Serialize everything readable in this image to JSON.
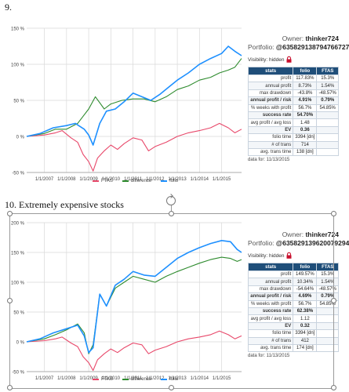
{
  "headings": [
    "9.",
    "10. Extremely expensive stocks"
  ],
  "panels": [
    {
      "owner_label": "Owner:",
      "owner": "thinker724",
      "portfolio_label": "Portfolio:",
      "portfolio": "@635829138794766727",
      "visibility": "Visibility: hidden",
      "table_headers": [
        "stats",
        "folio",
        "FTAS"
      ],
      "rows": [
        {
          "label": "profit",
          "folio": "117.83%",
          "ftas": "15.3%",
          "bold": false
        },
        {
          "label": "annual profit",
          "folio": "8.73%",
          "ftas": "1.54%",
          "bold": false
        },
        {
          "label": "max drawdown",
          "folio": "-43.8%",
          "ftas": "-48.57%",
          "bold": false
        },
        {
          "label": "annual profit / risk",
          "folio": "4.91%",
          "ftas": "0.79%",
          "bold": true
        },
        {
          "label": "% weeks with profit",
          "folio": "56.7%",
          "ftas": "54.85%",
          "bold": false
        },
        {
          "label": "success rate",
          "folio": "54.70%",
          "ftas": "",
          "bold": true
        },
        {
          "label": "avg profit / avg loss",
          "folio": "1.48",
          "ftas": "",
          "bold": false
        },
        {
          "label": "EV",
          "folio": "0.36",
          "ftas": "",
          "bold": true
        },
        {
          "label": "folio time",
          "folio": "3394 [dn]",
          "ftas": "",
          "bold": false
        },
        {
          "label": "# of trans",
          "folio": "714",
          "ftas": "",
          "bold": false
        },
        {
          "label": "avg. trans time",
          "folio": "138 [dn]",
          "ftas": "",
          "bold": false
        }
      ],
      "data_for": "data for: 11/13/2015"
    },
    {
      "owner_label": "Owner:",
      "owner": "thinker724",
      "portfolio_label": "Portfolio:",
      "portfolio": "@635829139620079294",
      "visibility": "Visibility: hidden",
      "table_headers": [
        "stats",
        "folio",
        "FTAS"
      ],
      "rows": [
        {
          "label": "profit",
          "folio": "149.57%",
          "ftas": "15.3%",
          "bold": false
        },
        {
          "label": "annual profit",
          "folio": "10.34%",
          "ftas": "1.54%",
          "bold": false
        },
        {
          "label": "max drawdown",
          "folio": "-54.64%",
          "ftas": "-48.57%",
          "bold": false
        },
        {
          "label": "annual profit / risk",
          "folio": "4.69%",
          "ftas": "0.79%",
          "bold": true
        },
        {
          "label": "% weeks with profit",
          "folio": "56.7%",
          "ftas": "54.85%",
          "bold": false
        },
        {
          "label": "success rate",
          "folio": "62.38%",
          "ftas": "",
          "bold": true
        },
        {
          "label": "avg profit / avg loss",
          "folio": "1.12",
          "ftas": "",
          "bold": false
        },
        {
          "label": "EV",
          "folio": "0.32",
          "ftas": "",
          "bold": true
        },
        {
          "label": "folio time",
          "folio": "3394 [dn]",
          "ftas": "",
          "bold": false
        },
        {
          "label": "# of trans",
          "folio": "412",
          "ftas": "",
          "bold": false
        },
        {
          "label": "avg. trans time",
          "folio": "174 [dn]",
          "ftas": "",
          "bold": false
        }
      ],
      "data_for": "data for: 11/13/2015"
    }
  ],
  "colors": {
    "ftas": "#e8486a",
    "difference": "#2e8b2e",
    "folio": "#1e90ff",
    "header": "#1f4e79",
    "grid": "#d9d9d9"
  },
  "chart_data": [
    {
      "type": "line",
      "x_ticks": [
        "1/1/2007",
        "1/1/2008",
        "1/1/2009",
        "1/1/2010",
        "1/1/2011",
        "1/1/2012",
        "1/1/2013",
        "1/1/2014",
        "1/1/2015"
      ],
      "y_ticks": [
        "-50 %",
        "0 %",
        "50 %",
        "100 %",
        "150 %"
      ],
      "ylim": [
        -50,
        150
      ],
      "xlim": [
        2006.2,
        2015.9
      ],
      "grid": true,
      "legend_position": "bottom",
      "series": [
        {
          "name": "FTAS",
          "x": [
            2006.2,
            2007.0,
            2007.5,
            2007.8,
            2008.2,
            2008.5,
            2008.75,
            2009.0,
            2009.2,
            2009.4,
            2009.7,
            2010.0,
            2010.3,
            2010.6,
            2011.0,
            2011.4,
            2011.7,
            2012.0,
            2012.5,
            2013.0,
            2013.5,
            2014.0,
            2014.5,
            2014.9,
            2015.3,
            2015.6,
            2015.9
          ],
          "values": [
            0,
            2,
            5,
            8,
            -2,
            -8,
            -25,
            -35,
            -48,
            -30,
            -20,
            -12,
            -18,
            -10,
            -2,
            -5,
            -20,
            -14,
            -8,
            0,
            5,
            8,
            12,
            18,
            12,
            5,
            10
          ]
        },
        {
          "name": "difference",
          "x": [
            2006.2,
            2007.0,
            2007.5,
            2008.0,
            2008.5,
            2008.8,
            2009.0,
            2009.3,
            2009.7,
            2010.0,
            2010.5,
            2011.0,
            2011.5,
            2012.0,
            2012.5,
            2013.0,
            2013.5,
            2014.0,
            2014.5,
            2014.9,
            2015.3,
            2015.6,
            2015.9
          ],
          "values": [
            0,
            4,
            10,
            10,
            18,
            30,
            38,
            55,
            38,
            45,
            50,
            52,
            52,
            48,
            55,
            65,
            70,
            78,
            82,
            88,
            92,
            96,
            108
          ]
        },
        {
          "name": "folio",
          "x": [
            2006.2,
            2006.8,
            2007.4,
            2008.0,
            2008.4,
            2008.8,
            2009.0,
            2009.2,
            2009.5,
            2009.8,
            2010.2,
            2010.6,
            2011.0,
            2011.4,
            2011.8,
            2012.2,
            2012.6,
            2013.0,
            2013.5,
            2014.0,
            2014.5,
            2015.0,
            2015.3,
            2015.6,
            2015.9
          ],
          "values": [
            0,
            4,
            12,
            15,
            18,
            10,
            2,
            -12,
            18,
            35,
            38,
            48,
            60,
            55,
            50,
            58,
            68,
            78,
            88,
            100,
            108,
            115,
            125,
            118,
            112
          ]
        }
      ]
    },
    {
      "type": "line",
      "x_ticks": [
        "1/1/2007",
        "1/1/2008",
        "1/1/2009",
        "1/1/2010",
        "1/1/2011",
        "1/1/2012",
        "1/1/2013",
        "1/1/2014",
        "1/1/2015"
      ],
      "y_ticks": [
        "-50 %",
        "0 %",
        "50 %",
        "100 %",
        "150 %",
        "200 %"
      ],
      "ylim": [
        -50,
        200
      ],
      "xlim": [
        2006.2,
        2015.9
      ],
      "grid": true,
      "legend_position": "bottom",
      "series": [
        {
          "name": "FTAS",
          "x": [
            2006.2,
            2007.0,
            2007.5,
            2007.8,
            2008.2,
            2008.5,
            2008.75,
            2009.0,
            2009.2,
            2009.4,
            2009.7,
            2010.0,
            2010.3,
            2010.6,
            2011.0,
            2011.4,
            2011.7,
            2012.0,
            2012.5,
            2013.0,
            2013.5,
            2014.0,
            2014.5,
            2014.9,
            2015.3,
            2015.6,
            2015.9
          ],
          "values": [
            0,
            2,
            5,
            8,
            -2,
            -8,
            -25,
            -35,
            -48,
            -30,
            -20,
            -12,
            -18,
            -10,
            -2,
            -5,
            -20,
            -14,
            -8,
            0,
            5,
            8,
            12,
            18,
            12,
            5,
            10
          ]
        },
        {
          "name": "difference",
          "x": [
            2006.2,
            2007.0,
            2007.5,
            2008.0,
            2008.5,
            2008.8,
            2009.0,
            2009.2,
            2009.5,
            2009.8,
            2010.2,
            2010.6,
            2011.0,
            2011.5,
            2012.0,
            2012.5,
            2013.0,
            2013.5,
            2014.0,
            2014.5,
            2015.0,
            2015.4,
            2015.7,
            2015.9
          ],
          "values": [
            0,
            5,
            12,
            20,
            30,
            15,
            -20,
            -5,
            80,
            60,
            90,
            100,
            110,
            105,
            100,
            110,
            118,
            125,
            132,
            138,
            142,
            140,
            135,
            138
          ]
        },
        {
          "name": "folio",
          "x": [
            2006.2,
            2006.8,
            2007.4,
            2008.0,
            2008.5,
            2008.8,
            2009.0,
            2009.2,
            2009.5,
            2009.8,
            2010.2,
            2010.6,
            2011.0,
            2011.5,
            2012.0,
            2012.5,
            2013.0,
            2013.5,
            2014.0,
            2014.5,
            2015.0,
            2015.4,
            2015.7,
            2015.9
          ],
          "values": [
            0,
            5,
            15,
            22,
            28,
            10,
            -18,
            -10,
            80,
            60,
            95,
            105,
            118,
            112,
            110,
            125,
            140,
            150,
            158,
            165,
            170,
            168,
            155,
            150
          ]
        }
      ]
    }
  ]
}
